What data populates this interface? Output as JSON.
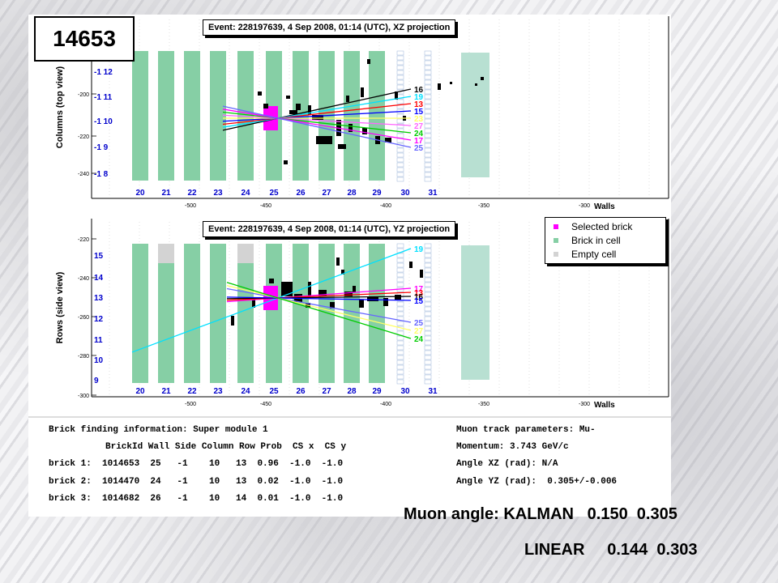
{
  "run_number": "14653",
  "top": {
    "title": "Event: 228197639,  4 Sep 2008, 01:14 (UTC), XZ projection",
    "ylabel": "Columns (top view)",
    "yticks": [
      "-200",
      "-220",
      "-240"
    ],
    "row_labels": [
      "-1 12",
      "-1 11",
      "-1 10",
      "-1  9",
      "-1  8"
    ],
    "track_labels": [
      "16",
      "19",
      "13",
      "15",
      "23",
      "27",
      "24",
      "17",
      "25"
    ],
    "track_colors": [
      "#000000",
      "#00e0ff",
      "#ff0000",
      "#0000ff",
      "#ffff66",
      "#ff66ff",
      "#00cc00",
      "#ff00ff",
      "#6666ff"
    ]
  },
  "bottom": {
    "title": "Event: 228197639,  4 Sep 2008, 01:14 (UTC), YZ projection",
    "ylabel": "Rows (side view)",
    "yticks": [
      "-220",
      "-240",
      "-260",
      "-280",
      "-300"
    ],
    "row_labels": [
      "15",
      "14",
      "13",
      "12",
      "11",
      "10",
      "9"
    ],
    "track_labels": [
      "19",
      "17",
      "13",
      "16",
      "15",
      "25",
      "27",
      "24"
    ],
    "track_colors": [
      "#00e0ff",
      "#ff00ff",
      "#ff0000",
      "#000000",
      "#0000ff",
      "#6666ff",
      "#ffff66",
      "#00cc00"
    ]
  },
  "walls": [
    "20",
    "21",
    "22",
    "23",
    "24",
    "25",
    "26",
    "27",
    "28",
    "29",
    "30",
    "31"
  ],
  "xticks": [
    "-500",
    "-450",
    "-400",
    "-350",
    "-300"
  ],
  "xlabel": "Walls",
  "legend": [
    {
      "label": "Selected brick",
      "color": "#ff00ff"
    },
    {
      "label": "Brick in cell",
      "color": "#86cfa5"
    },
    {
      "label": "Empty cell",
      "color": "#d3d3d3"
    }
  ],
  "brick_info": {
    "title": "Brick finding information: Super module 1",
    "header": "BrickId Wall Side Column Row Prob  CS x  CS y",
    "rows": [
      "brick 1:  1014653  25   -1    10   13  0.96  -1.0  -1.0",
      "brick 2:  1014470  24   -1    10   13  0.02  -1.0  -1.0",
      "brick 3:  1014682  26   -1    10   14  0.01  -1.0  -1.0"
    ]
  },
  "muon_params": {
    "title": "Muon track parameters: Mu-",
    "momentum": "Momentum: 3.743 GeV/c",
    "angle_xz": "Angle XZ (rad): N/A",
    "angle_yz": "Angle YZ (rad):  0.305+/-0.006"
  },
  "muon_angle": {
    "kalman": "Muon angle: KALMAN   0.150  0.305",
    "linear": "LINEAR     0.144  0.303"
  },
  "colors": {
    "brick": "#86cfa5",
    "selected": "#ff00ff",
    "empty": "#d3d3d3",
    "label_blue": "#0000cc"
  }
}
